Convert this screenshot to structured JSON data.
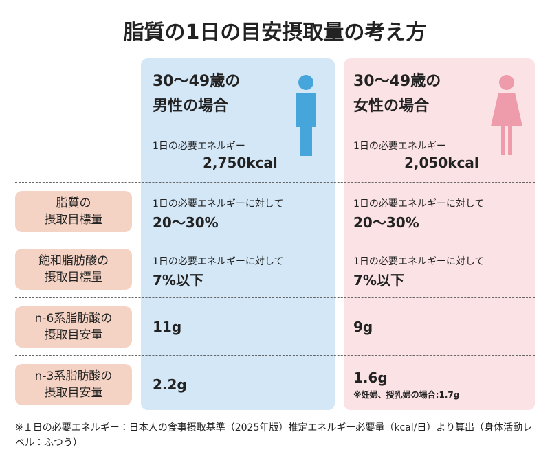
{
  "title": "脂質の1日の目安摂取量の考え方",
  "columns": [
    {
      "header": [
        "30〜49歳の",
        "男性の場合"
      ],
      "energy_label": "1日の必要エネルギー",
      "energy": "2,750kcal"
    },
    {
      "header": [
        "30〜49歳の",
        "女性の場合"
      ],
      "energy_label": "1日の必要エネルギー",
      "energy": "2,050kcal"
    }
  ],
  "rows": [
    {
      "label": [
        "脂質の",
        "摂取目標量"
      ],
      "male": [
        "1日の必要エネルギーに対して",
        "20〜30%"
      ],
      "female": [
        "1日の必要エネルギーに対して",
        "20〜30%"
      ]
    },
    {
      "label": [
        "飽和脂肪酸の",
        "摂取目標量"
      ],
      "male": [
        "1日の必要エネルギーに対して",
        "7%以下"
      ],
      "female": [
        "1日の必要エネルギーに対して",
        "7%以下"
      ]
    },
    {
      "label": [
        "n-6系脂肪酸の",
        "摂取目安量"
      ],
      "male": [
        "11g"
      ],
      "female": [
        "9g"
      ]
    },
    {
      "label": [
        "n-3系脂肪酸の",
        "摂取目安量"
      ],
      "male": [
        "2.2g"
      ],
      "female": [
        "1.6g",
        "※妊婦、授乳婦の場合:1.7g"
      ]
    }
  ],
  "footnote": "※１日の必要エネルギー：日本人の食事摂取基準（2025年版）推定エネルギー必要量（kcal/日）より算出（身体活動レベル：ふつう）"
}
